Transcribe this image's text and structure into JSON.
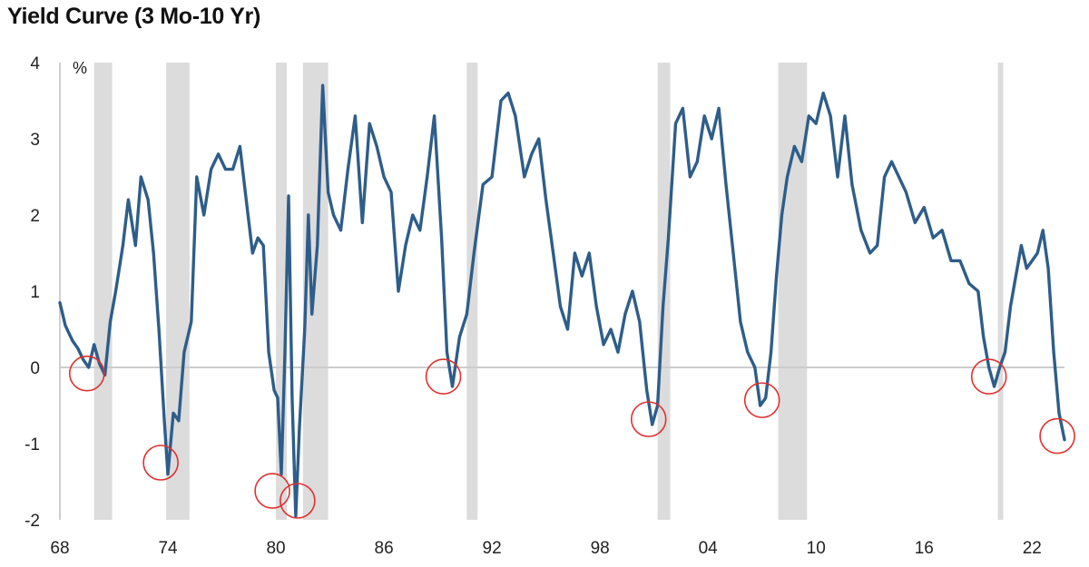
{
  "chart_data": {
    "type": "line",
    "title": "Yield Curve (3 Mo-10 Yr)",
    "y_unit": "%",
    "ylim": [
      -2,
      4
    ],
    "xlim": [
      1968,
      1969.5,
      2023.8
    ],
    "y_ticks": [
      4,
      3,
      2,
      1,
      0,
      -1,
      -2
    ],
    "x_ticks": [
      {
        "value": 1968,
        "label": "68"
      },
      {
        "value": 1974,
        "label": "74"
      },
      {
        "value": 1980,
        "label": "80"
      },
      {
        "value": 1986,
        "label": "86"
      },
      {
        "value": 1992,
        "label": "92"
      },
      {
        "value": 1998,
        "label": "98"
      },
      {
        "value": 2004,
        "label": "04"
      },
      {
        "value": 2010,
        "label": "10"
      },
      {
        "value": 2016,
        "label": "16"
      },
      {
        "value": 2022,
        "label": "22"
      }
    ],
    "grid": false,
    "zero_line": true,
    "colors": {
      "line": "#2e5d8a",
      "recession": "#dcdcdc",
      "circle": "#e03030",
      "zero": "#cccccc"
    },
    "recessions": [
      [
        1969.9,
        1970.9
      ],
      [
        1973.9,
        1975.2
      ],
      [
        1980.0,
        1980.6
      ],
      [
        1981.5,
        1982.9
      ],
      [
        1990.6,
        1991.2
      ],
      [
        2001.2,
        2001.9
      ],
      [
        2007.9,
        2009.5
      ],
      [
        2020.1,
        2020.4
      ]
    ],
    "inversion_circles": [
      {
        "x": 1969.5,
        "y": -0.08
      },
      {
        "x": 1973.6,
        "y": -1.25
      },
      {
        "x": 1979.8,
        "y": -1.62
      },
      {
        "x": 1981.2,
        "y": -1.75
      },
      {
        "x": 1989.3,
        "y": -0.12
      },
      {
        "x": 2000.7,
        "y": -0.68
      },
      {
        "x": 2007.0,
        "y": -0.43
      },
      {
        "x": 2019.6,
        "y": -0.12
      },
      {
        "x": 2023.4,
        "y": -0.9
      }
    ],
    "series": [
      {
        "x": [
          1968.0,
          1968.3,
          1968.7,
          1969.0,
          1969.3,
          1969.6,
          1969.9,
          1970.2,
          1970.5,
          1970.8,
          1971.1,
          1971.5,
          1971.8,
          1972.2,
          1972.5,
          1972.9,
          1973.2,
          1973.5,
          1973.8,
          1974.0,
          1974.3,
          1974.6,
          1974.9,
          1975.3,
          1975.6,
          1976.0,
          1976.4,
          1976.8,
          1977.2,
          1977.6,
          1978.0,
          1978.3,
          1978.7,
          1979.0,
          1979.3,
          1979.6,
          1979.9,
          1980.1,
          1980.3,
          1980.5,
          1980.7,
          1980.9,
          1981.1,
          1981.3,
          1981.6,
          1981.8,
          1982.0,
          1982.3,
          1982.6,
          1982.9,
          1983.2,
          1983.6,
          1984.0,
          1984.4,
          1984.8,
          1985.2,
          1985.6,
          1986.0,
          1986.4,
          1986.8,
          1987.2,
          1987.6,
          1988.0,
          1988.4,
          1988.8,
          1989.2,
          1989.5,
          1989.8,
          1990.2,
          1990.6,
          1991.0,
          1991.5,
          1992.0,
          1992.5,
          1992.9,
          1993.3,
          1993.8,
          1994.2,
          1994.6,
          1995.0,
          1995.4,
          1995.8,
          1996.2,
          1996.6,
          1997.0,
          1997.4,
          1997.8,
          1998.2,
          1998.6,
          1999.0,
          1999.4,
          1999.8,
          2000.2,
          2000.6,
          2000.9,
          2001.2,
          2001.5,
          2001.8,
          2002.2,
          2002.6,
          2003.0,
          2003.4,
          2003.8,
          2004.2,
          2004.6,
          2005.0,
          2005.4,
          2005.8,
          2006.2,
          2006.6,
          2006.9,
          2007.2,
          2007.5,
          2007.8,
          2008.1,
          2008.4,
          2008.8,
          2009.2,
          2009.6,
          2010.0,
          2010.4,
          2010.8,
          2011.2,
          2011.6,
          2012.0,
          2012.5,
          2013.0,
          2013.4,
          2013.8,
          2014.2,
          2014.6,
          2015.0,
          2015.5,
          2016.0,
          2016.5,
          2017.0,
          2017.5,
          2018.0,
          2018.5,
          2019.0,
          2019.3,
          2019.6,
          2019.9,
          2020.2,
          2020.5,
          2020.8,
          2021.1,
          2021.4,
          2021.7,
          2022.0,
          2022.3,
          2022.6,
          2022.9,
          2023.2,
          2023.5,
          2023.8
        ],
        "y": [
          0.85,
          0.55,
          0.35,
          0.25,
          0.1,
          0.0,
          0.3,
          0.05,
          -0.1,
          0.6,
          1.0,
          1.6,
          2.2,
          1.6,
          2.5,
          2.2,
          1.5,
          0.5,
          -0.7,
          -1.4,
          -0.6,
          -0.7,
          0.2,
          0.6,
          2.5,
          2.0,
          2.6,
          2.8,
          2.6,
          2.6,
          2.9,
          2.3,
          1.5,
          1.7,
          1.6,
          0.2,
          -0.3,
          -0.4,
          -1.4,
          0.2,
          2.25,
          -0.4,
          -1.95,
          -0.8,
          0.5,
          2.0,
          0.7,
          1.6,
          3.7,
          2.3,
          2.0,
          1.8,
          2.6,
          3.3,
          1.9,
          3.2,
          2.9,
          2.5,
          2.3,
          1.0,
          1.6,
          2.0,
          1.8,
          2.5,
          3.3,
          1.7,
          0.2,
          -0.25,
          0.4,
          0.7,
          1.5,
          2.4,
          2.5,
          3.5,
          3.6,
          3.3,
          2.5,
          2.8,
          3.0,
          2.2,
          1.5,
          0.8,
          0.5,
          1.5,
          1.2,
          1.5,
          0.8,
          0.3,
          0.5,
          0.2,
          0.7,
          1.0,
          0.6,
          -0.3,
          -0.75,
          -0.5,
          0.8,
          1.7,
          3.2,
          3.4,
          2.5,
          2.7,
          3.3,
          3.0,
          3.4,
          2.4,
          1.5,
          0.6,
          0.2,
          0.0,
          -0.5,
          -0.4,
          0.2,
          1.2,
          2.0,
          2.5,
          2.9,
          2.7,
          3.3,
          3.2,
          3.6,
          3.3,
          2.5,
          3.3,
          2.4,
          1.8,
          1.5,
          1.6,
          2.5,
          2.7,
          2.5,
          2.3,
          1.9,
          2.1,
          1.7,
          1.8,
          1.4,
          1.4,
          1.1,
          1.0,
          0.4,
          0.0,
          -0.25,
          0.0,
          0.2,
          0.8,
          1.2,
          1.6,
          1.3,
          1.4,
          1.5,
          1.8,
          1.3,
          0.2,
          -0.6,
          -0.95
        ]
      }
    ]
  }
}
